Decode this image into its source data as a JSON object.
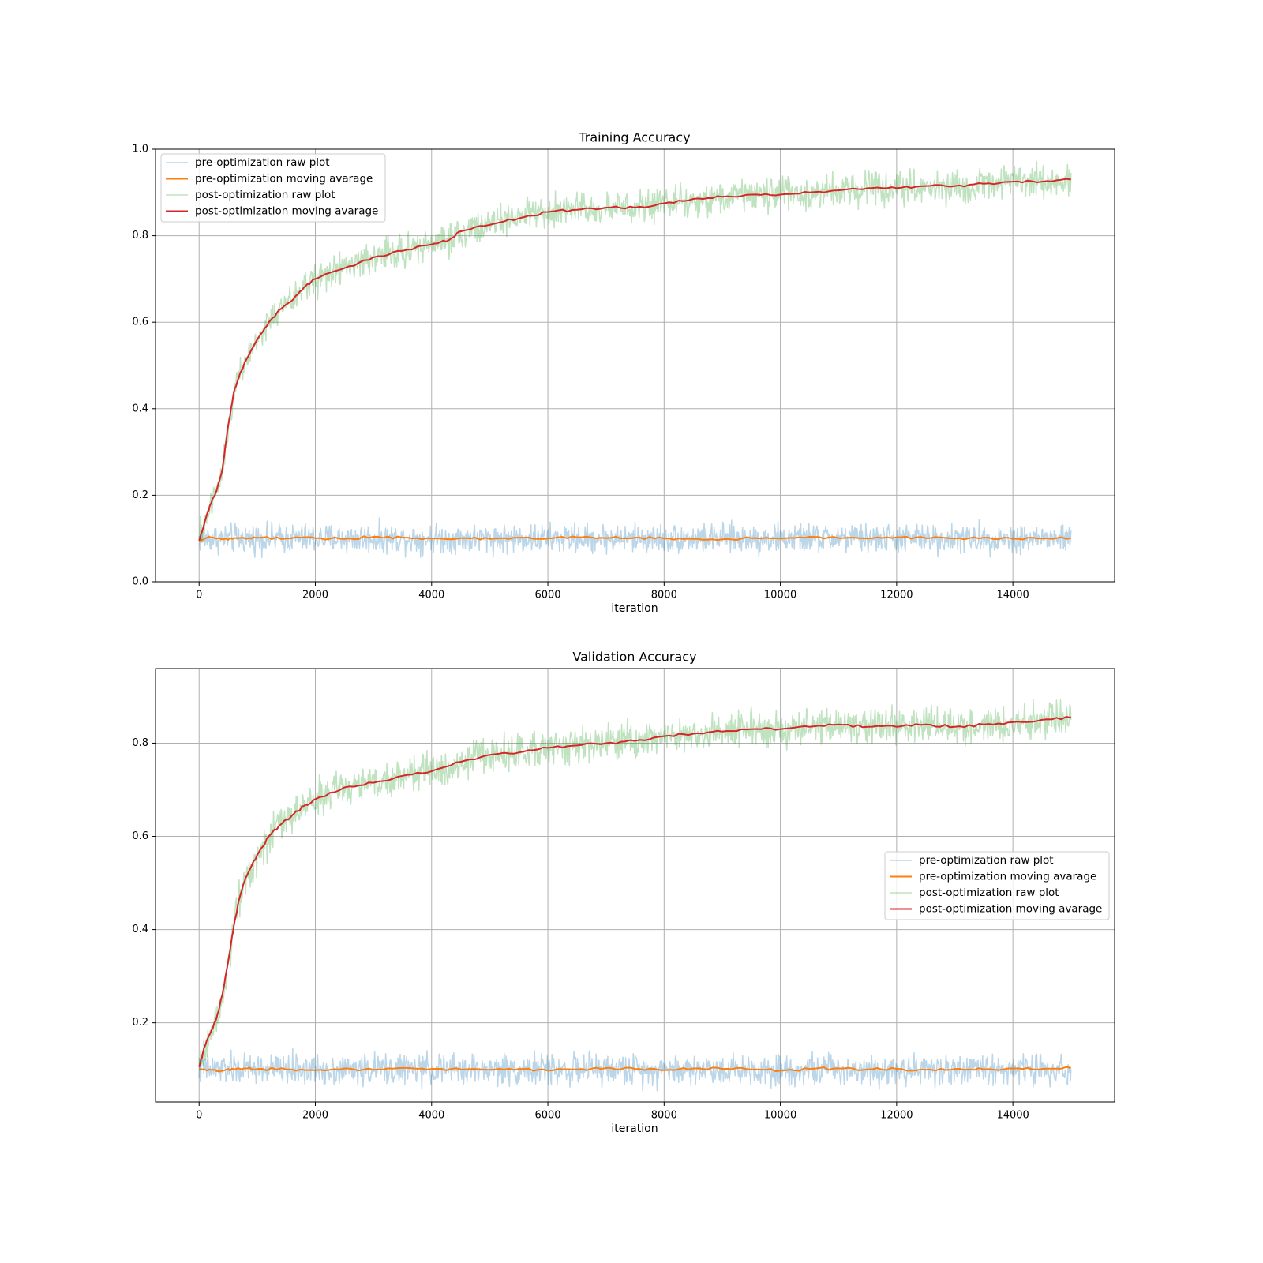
{
  "chart_data": [
    {
      "type": "line",
      "title": "Training Accuracy",
      "xlabel": "iteration",
      "ylabel": "",
      "xlim": [
        -750,
        15750
      ],
      "ylim": [
        0.0,
        1.0
      ],
      "xticks": [
        0,
        2000,
        4000,
        6000,
        8000,
        10000,
        12000,
        14000
      ],
      "xtick_labels": [
        "0",
        "2000",
        "4000",
        "6000",
        "8000",
        "10000",
        "12000",
        "14000"
      ],
      "yticks": [
        0.0,
        0.2,
        0.4,
        0.6,
        0.8,
        1.0
      ],
      "ytick_labels": [
        "0.0",
        "0.2",
        "0.4",
        "0.6",
        "0.8",
        "1.0"
      ],
      "grid": true,
      "legend_position": "upper-left",
      "series": [
        {
          "name": "pre-optimization raw plot",
          "color": "#1f77b4",
          "opacity": 0.3,
          "width": 1.5,
          "kind": "raw",
          "x": [
            0,
            15000
          ],
          "approx_level": 0.1,
          "noise": 0.035
        },
        {
          "name": "pre-optimization moving avarage",
          "color": "#ff7f0e",
          "opacity": 1,
          "width": 2,
          "x": [
            0,
            200,
            400,
            600,
            800,
            1000,
            1500,
            2000,
            2500,
            3000,
            3500,
            4000,
            4500,
            5000,
            5500,
            6000,
            6500,
            7000,
            7500,
            8000,
            8500,
            9000,
            9500,
            10000,
            10500,
            11000,
            11500,
            12000,
            12500,
            13000,
            13500,
            14000,
            14500,
            15000
          ],
          "y": [
            0.095,
            0.103,
            0.098,
            0.101,
            0.099,
            0.102,
            0.1,
            0.101,
            0.099,
            0.104,
            0.102,
            0.1,
            0.101,
            0.099,
            0.102,
            0.1,
            0.103,
            0.101,
            0.102,
            0.1,
            0.099,
            0.098,
            0.101,
            0.1,
            0.104,
            0.101,
            0.1,
            0.103,
            0.101,
            0.1,
            0.102,
            0.099,
            0.1,
            0.101
          ]
        },
        {
          "name": "post-optimization raw plot",
          "color": "#2ca02c",
          "opacity": 0.3,
          "width": 1.5,
          "kind": "raw",
          "x": [
            0,
            15000
          ],
          "follow": "post-optimization moving avarage",
          "noise": 0.04
        },
        {
          "name": "post-optimization moving avarage",
          "color": "#d62728",
          "opacity": 1,
          "width": 2,
          "x": [
            0,
            100,
            200,
            300,
            400,
            500,
            600,
            700,
            800,
            1000,
            1200,
            1400,
            1600,
            1800,
            2000,
            2500,
            3000,
            3500,
            4000,
            4300,
            4500,
            5000,
            5500,
            6000,
            6500,
            7000,
            7500,
            8000,
            8500,
            9000,
            9500,
            10000,
            10500,
            11000,
            11500,
            12000,
            12500,
            13000,
            13500,
            14000,
            14500,
            15000
          ],
          "y": [
            0.095,
            0.14,
            0.18,
            0.21,
            0.26,
            0.36,
            0.44,
            0.48,
            0.51,
            0.56,
            0.6,
            0.63,
            0.65,
            0.68,
            0.7,
            0.725,
            0.75,
            0.765,
            0.78,
            0.79,
            0.81,
            0.825,
            0.84,
            0.855,
            0.86,
            0.865,
            0.865,
            0.875,
            0.885,
            0.89,
            0.895,
            0.895,
            0.9,
            0.905,
            0.91,
            0.91,
            0.915,
            0.915,
            0.92,
            0.925,
            0.925,
            0.93
          ]
        }
      ]
    },
    {
      "type": "line",
      "title": "Validation Accuracy",
      "xlabel": "iteration",
      "ylabel": "",
      "xlim": [
        -750,
        15750
      ],
      "ylim": [
        0.03,
        0.96
      ],
      "xticks": [
        0,
        2000,
        4000,
        6000,
        8000,
        10000,
        12000,
        14000
      ],
      "xtick_labels": [
        "0",
        "2000",
        "4000",
        "6000",
        "8000",
        "10000",
        "12000",
        "14000"
      ],
      "yticks": [
        0.2,
        0.4,
        0.6,
        0.8
      ],
      "ytick_labels": [
        "0.2",
        "0.4",
        "0.6",
        "0.8"
      ],
      "grid": true,
      "legend_position": "center-right",
      "series": [
        {
          "name": "pre-optimization raw plot",
          "color": "#1f77b4",
          "opacity": 0.3,
          "width": 1.5,
          "kind": "raw",
          "x": [
            0,
            15000
          ],
          "approx_level": 0.1,
          "noise": 0.035
        },
        {
          "name": "pre-optimization moving avarage",
          "color": "#ff7f0e",
          "opacity": 1,
          "width": 2,
          "x": [
            0,
            200,
            400,
            600,
            800,
            1000,
            1500,
            2000,
            2500,
            3000,
            3500,
            4000,
            4500,
            5000,
            5500,
            6000,
            6500,
            7000,
            7500,
            8000,
            8500,
            9000,
            9500,
            10000,
            10500,
            11000,
            11500,
            12000,
            12500,
            13000,
            13500,
            14000,
            14500,
            15000
          ],
          "y": [
            0.1,
            0.099,
            0.097,
            0.1,
            0.102,
            0.101,
            0.1,
            0.098,
            0.102,
            0.099,
            0.103,
            0.101,
            0.1,
            0.099,
            0.101,
            0.097,
            0.1,
            0.103,
            0.101,
            0.098,
            0.102,
            0.101,
            0.1,
            0.097,
            0.101,
            0.102,
            0.1,
            0.101,
            0.099,
            0.101,
            0.1,
            0.102,
            0.101,
            0.103
          ]
        },
        {
          "name": "post-optimization raw plot",
          "color": "#2ca02c",
          "opacity": 0.3,
          "width": 1.5,
          "kind": "raw",
          "x": [
            0,
            15000
          ],
          "follow": "post-optimization moving avarage",
          "noise": 0.04
        },
        {
          "name": "post-optimization moving avarage",
          "color": "#d62728",
          "opacity": 1,
          "width": 2,
          "x": [
            0,
            100,
            200,
            300,
            400,
            500,
            600,
            700,
            800,
            1000,
            1200,
            1400,
            1600,
            1800,
            2000,
            2500,
            3000,
            3500,
            4000,
            4500,
            5000,
            5500,
            6000,
            6500,
            7000,
            7500,
            8000,
            8500,
            9000,
            9500,
            10000,
            10500,
            11000,
            11500,
            12000,
            12500,
            13000,
            13500,
            14000,
            14500,
            15000
          ],
          "y": [
            0.105,
            0.15,
            0.18,
            0.21,
            0.26,
            0.33,
            0.41,
            0.47,
            0.51,
            0.56,
            0.6,
            0.625,
            0.645,
            0.665,
            0.68,
            0.705,
            0.715,
            0.73,
            0.74,
            0.76,
            0.775,
            0.78,
            0.79,
            0.795,
            0.8,
            0.805,
            0.815,
            0.82,
            0.825,
            0.83,
            0.83,
            0.835,
            0.84,
            0.835,
            0.835,
            0.84,
            0.835,
            0.84,
            0.845,
            0.85,
            0.855
          ]
        }
      ]
    }
  ]
}
